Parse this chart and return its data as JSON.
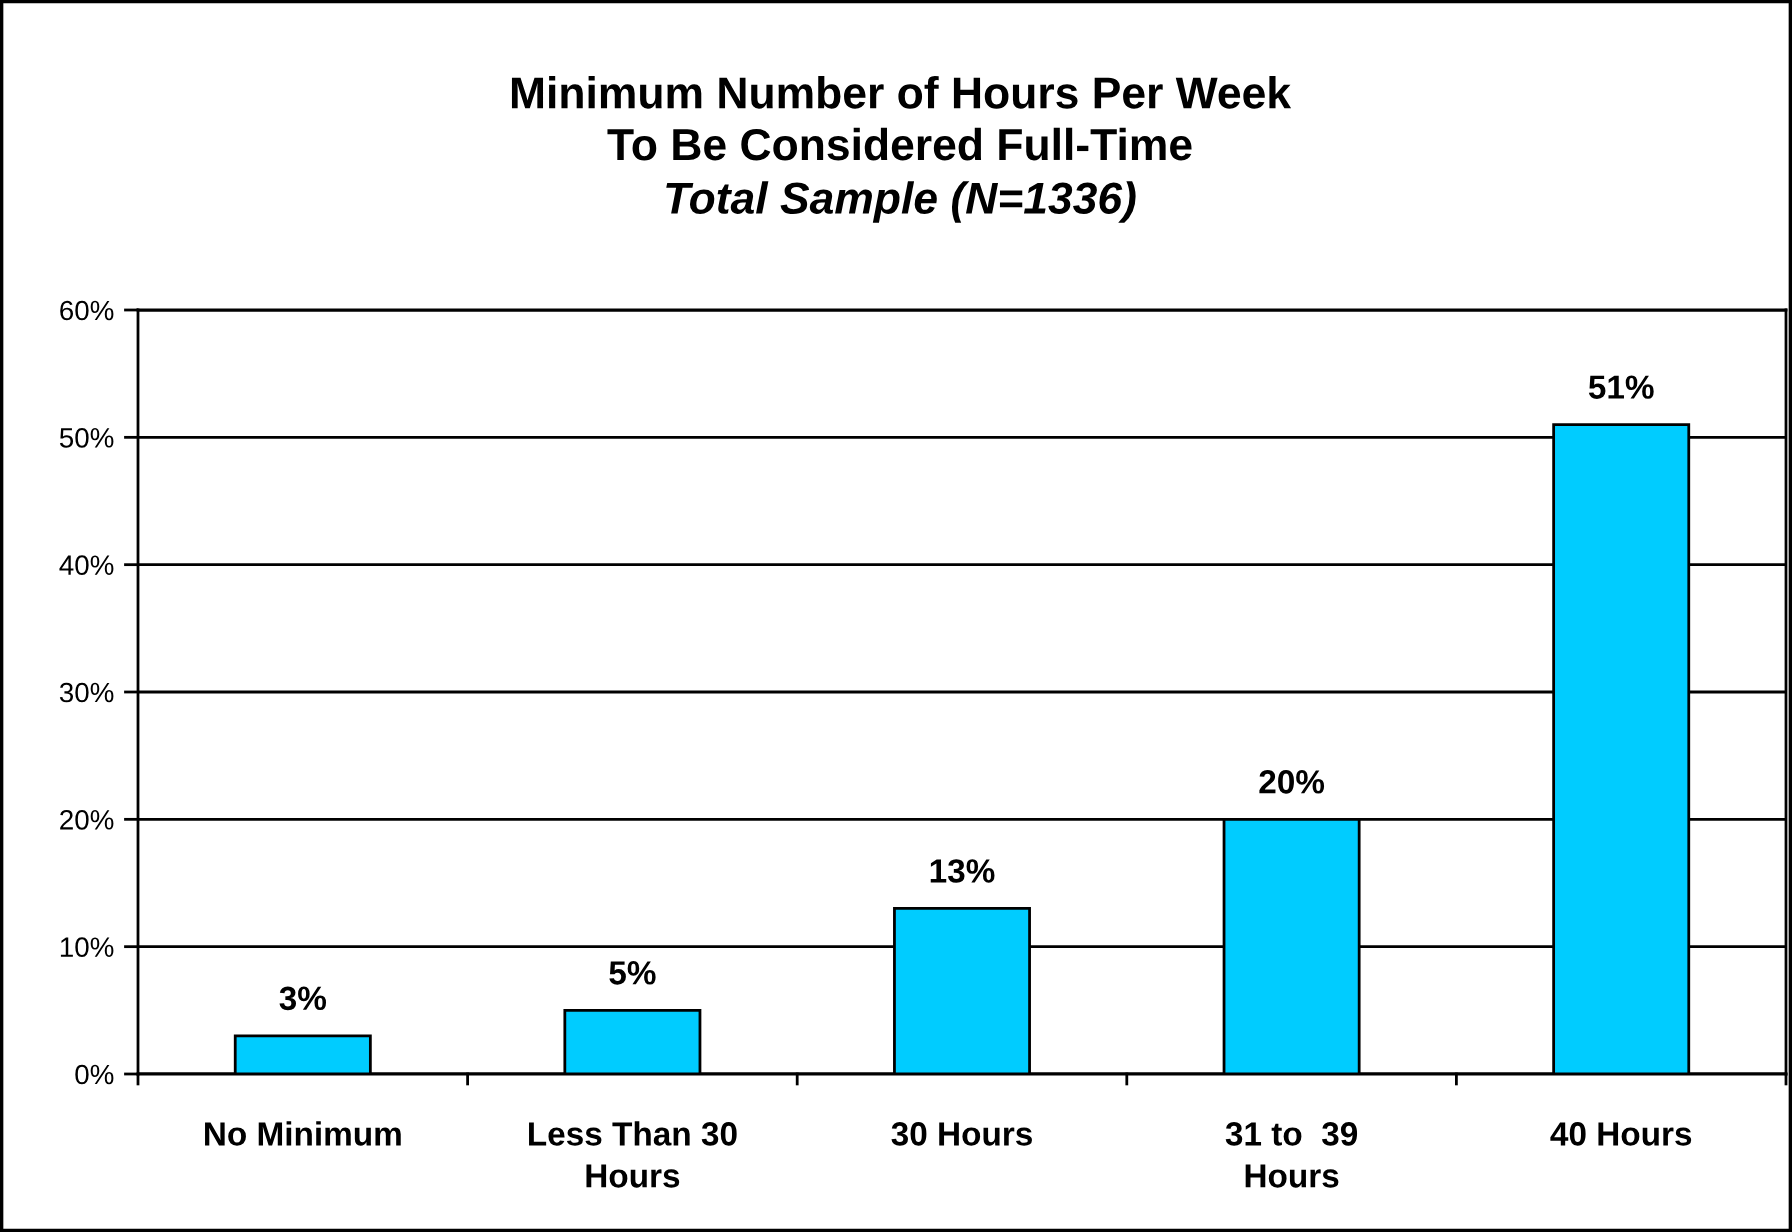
{
  "chart_data": {
    "type": "bar",
    "title": "Minimum Number of Hours Per Week\nTo Be Considered Full-Time",
    "subtitle": "Total Sample (N=1336)",
    "categories": [
      "No Minimum",
      "Less Than 30\nHours",
      "30 Hours",
      "31 to  39\nHours",
      "40 Hours"
    ],
    "values": [
      3,
      5,
      13,
      20,
      51
    ],
    "color": "#00ccff",
    "value_labels": [
      "3%",
      "5%",
      "13%",
      "20%",
      "51%"
    ],
    "ylim": [
      0,
      60
    ],
    "yticks": [
      {
        "value": 0,
        "label": "0%"
      },
      {
        "value": 10,
        "label": "10%"
      },
      {
        "value": 20,
        "label": "20%"
      },
      {
        "value": 30,
        "label": "30%"
      },
      {
        "value": 40,
        "label": "40%"
      },
      {
        "value": 50,
        "label": "50%"
      },
      {
        "value": 60,
        "label": "60%"
      }
    ],
    "grid": "y",
    "legend": false
  }
}
